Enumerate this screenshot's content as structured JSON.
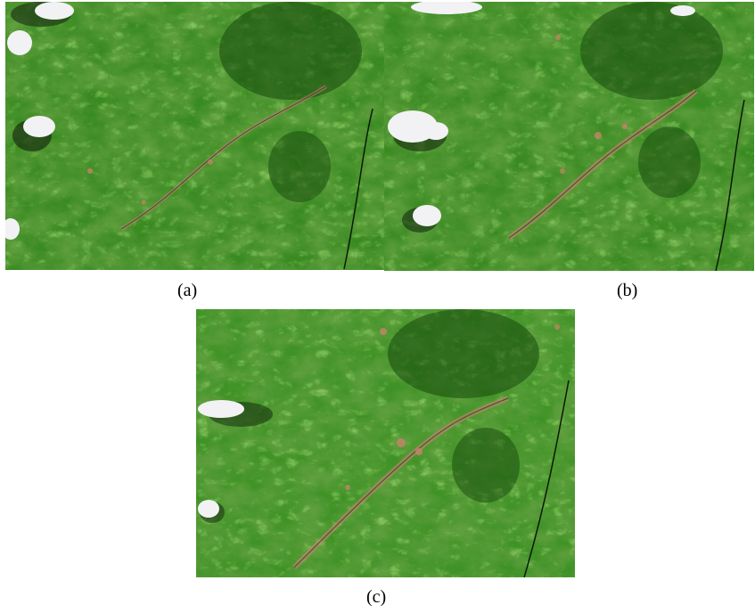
{
  "figure": {
    "panels": [
      {
        "id": "a",
        "caption": "(a)",
        "content": "satellite-image"
      },
      {
        "id": "b",
        "caption": "(b)",
        "content": "satellite-image"
      },
      {
        "id": "c",
        "caption": "(c)",
        "content": "satellite-image"
      }
    ]
  },
  "colors": {
    "vegetation_dark": "#1e5a10",
    "vegetation_mid": "#3a8a22",
    "vegetation_light": "#6fcf3a",
    "bare_soil": "#c9826a",
    "cloud": "#f2f2f4",
    "cloud_shadow": "#10200c",
    "river": "#2c3a3a"
  }
}
